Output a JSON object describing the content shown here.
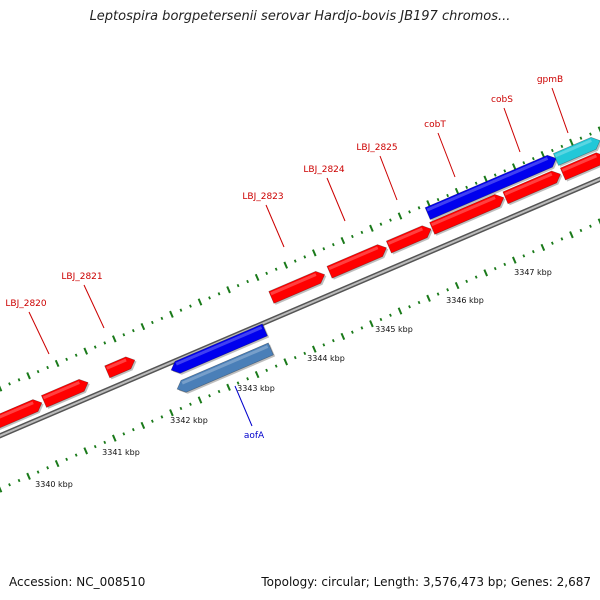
{
  "title": "Leptospira borgpetersenii serovar Hardjo-bovis JB197 chromos...",
  "footer": {
    "accession": "Accession: NC_008510",
    "summary": "Topology: circular; Length: 3,576,473 bp; Genes: 2,687"
  },
  "colors": {
    "cds_forward": "#ff0000",
    "orf_forward": "#0000ee",
    "rrna_forward": "#22c8d8",
    "orf_reverse": "#0000ee",
    "cds_reverse": "#4a7fb8",
    "backbone": "#888888",
    "tick": "#1a7a1a",
    "label_red": "#cc0000",
    "label_blue": "#0000cc"
  },
  "genes": [
    {
      "name": "LBJ_2820",
      "strand": "+",
      "color": "#cc0000"
    },
    {
      "name": "LBJ_2821",
      "strand": "+",
      "color": "#cc0000"
    },
    {
      "name": "LBJ_2823",
      "strand": "+",
      "color": "#cc0000"
    },
    {
      "name": "LBJ_2824",
      "strand": "+",
      "color": "#cc0000"
    },
    {
      "name": "LBJ_2825",
      "strand": "+",
      "color": "#cc0000"
    },
    {
      "name": "cobT",
      "strand": "+",
      "color": "#cc0000"
    },
    {
      "name": "cobS",
      "strand": "+",
      "color": "#cc0000"
    },
    {
      "name": "gpmB",
      "strand": "+",
      "color": "#cc0000"
    },
    {
      "name": "aofA",
      "strand": "-",
      "color": "#0000cc"
    }
  ],
  "kbp_labels": [
    "3340 kbp",
    "3341 kbp",
    "3342 kbp",
    "3343 kbp",
    "3344 kbp",
    "3345 kbp",
    "3346 kbp",
    "3347 kbp"
  ]
}
